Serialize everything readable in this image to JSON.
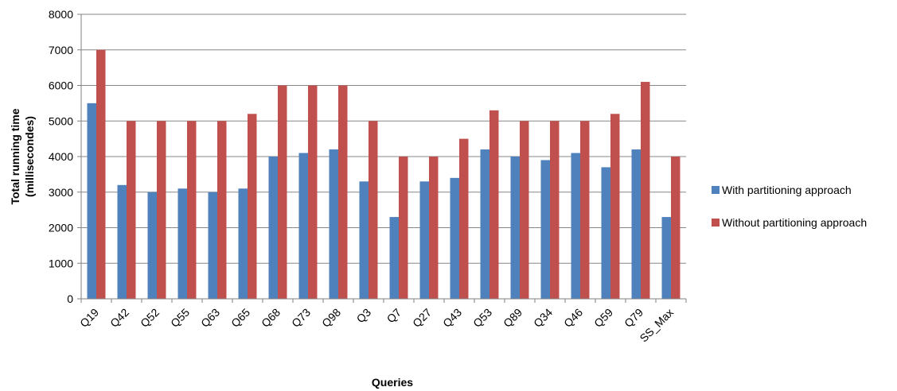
{
  "chart_data": {
    "type": "bar",
    "categories": [
      "Q19",
      "Q42",
      "Q52",
      "Q55",
      "Q63",
      "Q65",
      "Q68",
      "Q73",
      "Q98",
      "Q3",
      "Q7",
      "Q27",
      "Q43",
      "Q53",
      "Q89",
      "Q34",
      "Q46",
      "Q59",
      "Q79",
      "SS_Max"
    ],
    "series": [
      {
        "name": "With partitioning approach",
        "color": "#4f81bd",
        "values": [
          5500,
          3200,
          3000,
          3100,
          3000,
          3100,
          4000,
          4100,
          4200,
          3300,
          2300,
          3300,
          3400,
          4200,
          4000,
          3900,
          4100,
          3700,
          4200,
          2300
        ]
      },
      {
        "name": "Without partitioning approach",
        "color": "#c0504d",
        "values": [
          7000,
          5000,
          5000,
          5000,
          5000,
          5200,
          6000,
          6000,
          6000,
          5000,
          4000,
          4000,
          4500,
          5300,
          5000,
          5000,
          5000,
          5200,
          6100,
          4000
        ]
      }
    ],
    "xlabel": "Queries",
    "ylabel_line1": "Total running time",
    "ylabel_line2": "(millisecondes)",
    "ylim": [
      0,
      8000
    ],
    "yticks": [
      "0",
      "1000",
      "2000",
      "3000",
      "4000",
      "5000",
      "6000",
      "7000",
      "8000"
    ],
    "grid": true,
    "legend_position": "right"
  }
}
